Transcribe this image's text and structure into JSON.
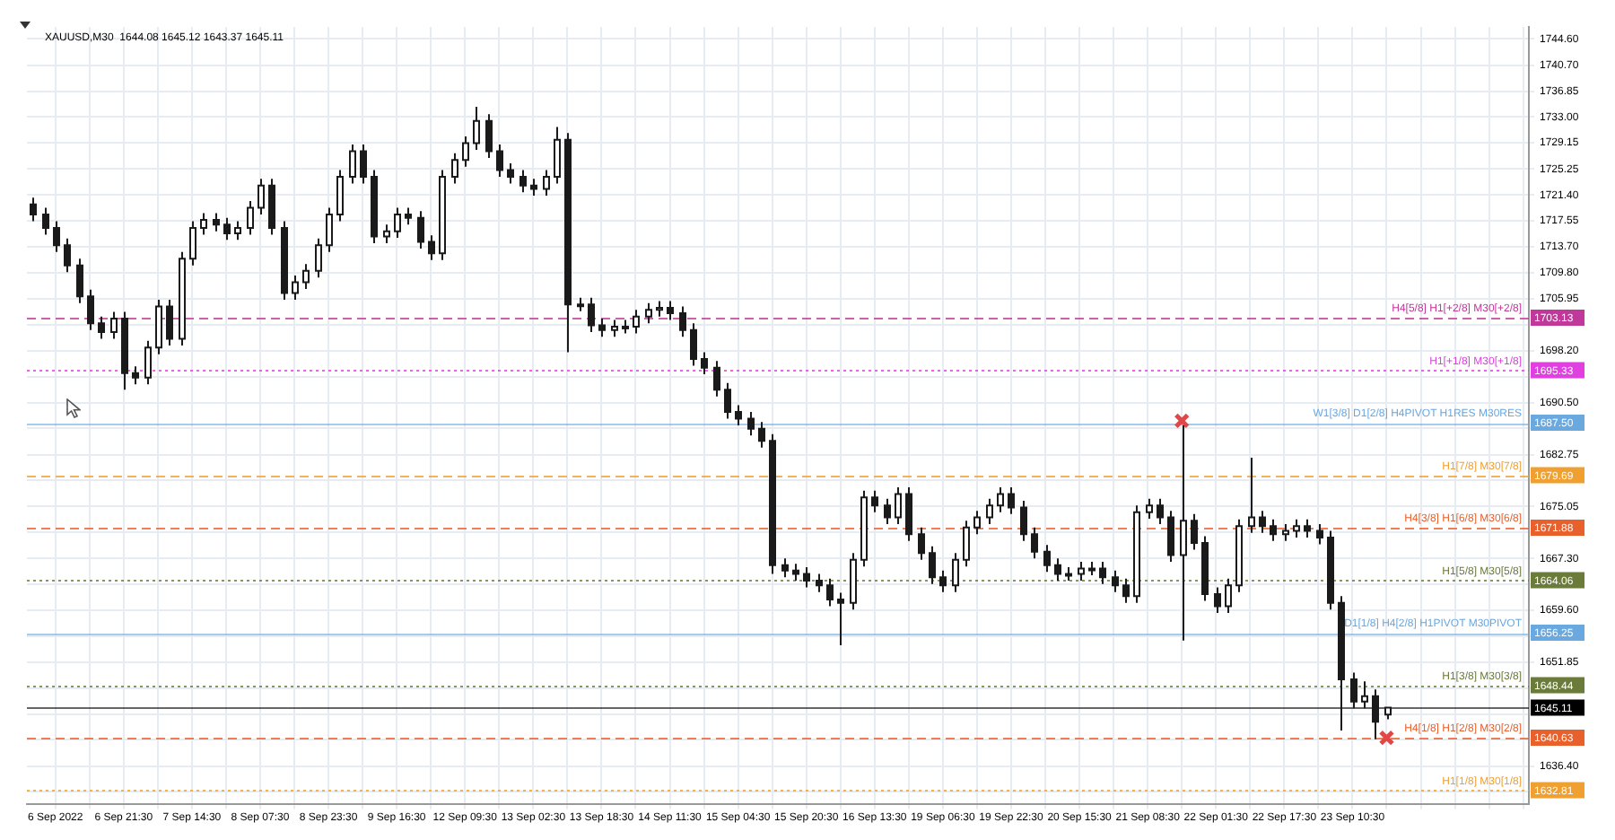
{
  "chart_data": {
    "type": "candlestick",
    "title": "XAUUSD,M30  1644.08 1645.12 1643.37 1645.11",
    "color": "#1a1a1a",
    "categories": [
      null,
      null,
      "6 Sep 2022",
      null,
      null,
      null,
      null,
      null,
      "6 Sep 21:30",
      null,
      null,
      null,
      null,
      null,
      "7 Sep 14:30",
      null,
      null,
      null,
      null,
      null,
      "8 Sep 07:30",
      null,
      null,
      null,
      null,
      null,
      "8 Sep 23:30",
      null,
      null,
      null,
      null,
      null,
      "9 Sep 16:30",
      null,
      null,
      null,
      null,
      null,
      "12 Sep 09:30",
      null,
      null,
      null,
      null,
      null,
      "13 Sep 02:30",
      null,
      null,
      null,
      null,
      null,
      "13 Sep 18:30",
      null,
      null,
      null,
      null,
      null,
      "14 Sep 11:30",
      null,
      null,
      null,
      null,
      null,
      "15 Sep 04:30",
      null,
      null,
      null,
      null,
      null,
      "15 Sep 20:30",
      null,
      null,
      null,
      null,
      null,
      "16 Sep 13:30",
      null,
      null,
      null,
      null,
      null,
      "19 Sep 06:30",
      null,
      null,
      null,
      null,
      null,
      "19 Sep 22:30",
      null,
      null,
      null,
      null,
      null,
      "20 Sep 15:30",
      null,
      null,
      null,
      null,
      null,
      "21 Sep 08:30",
      null,
      null,
      null,
      null,
      null,
      "22 Sep 01:30",
      null,
      null,
      null,
      null,
      null,
      "22 Sep 17:30",
      null,
      null,
      null,
      null,
      null,
      "23 Sep 10:30",
      null,
      null,
      null,
      null,
      null,
      null,
      null,
      null,
      null,
      null,
      null,
      null,
      null,
      null,
      null
    ],
    "ohlc": [
      [
        1720.0,
        1721.0,
        1717.5,
        1718.5
      ],
      [
        1718.5,
        1719.5,
        1715.5,
        1716.5
      ],
      [
        1716.5,
        1717.5,
        1712.9,
        1713.9
      ],
      [
        1713.9,
        1714.9,
        1709.9,
        1710.9
      ],
      [
        1710.9,
        1711.9,
        1705.3,
        1706.3
      ],
      [
        1706.3,
        1707.3,
        1701.3,
        1702.3
      ],
      [
        1702.3,
        1703.3,
        1700.0,
        1701.0
      ],
      [
        1701.0,
        1704.0,
        1700.0,
        1703.0
      ],
      [
        1703.0,
        1704.0,
        1692.4,
        1694.9
      ],
      [
        1694.9,
        1695.9,
        1693.2,
        1694.2
      ],
      [
        1694.2,
        1699.7,
        1693.2,
        1698.7
      ],
      [
        1698.7,
        1705.8,
        1697.7,
        1704.8
      ],
      [
        1704.8,
        1705.8,
        1699.0,
        1700.0
      ],
      [
        1700.0,
        1712.9,
        1699.0,
        1711.9
      ],
      [
        1711.9,
        1717.5,
        1710.9,
        1716.5
      ],
      [
        1716.5,
        1718.7,
        1715.5,
        1717.7
      ],
      [
        1717.7,
        1718.7,
        1716.0,
        1717.0
      ],
      [
        1717.0,
        1718.0,
        1714.7,
        1715.7
      ],
      [
        1715.7,
        1717.5,
        1714.7,
        1716.5
      ],
      [
        1716.5,
        1720.5,
        1715.5,
        1719.5
      ],
      [
        1719.5,
        1723.8,
        1718.5,
        1722.8
      ],
      [
        1722.8,
        1723.8,
        1715.5,
        1716.5
      ],
      [
        1716.5,
        1717.5,
        1705.8,
        1706.8
      ],
      [
        1706.8,
        1709.4,
        1705.8,
        1708.4
      ],
      [
        1708.4,
        1711.1,
        1707.4,
        1710.1
      ],
      [
        1710.1,
        1714.9,
        1709.1,
        1713.9
      ],
      [
        1713.9,
        1719.5,
        1712.9,
        1718.5
      ],
      [
        1718.5,
        1725.1,
        1717.5,
        1724.1
      ],
      [
        1724.1,
        1728.9,
        1723.1,
        1727.9
      ],
      [
        1727.9,
        1728.9,
        1723.1,
        1724.1
      ],
      [
        1724.1,
        1725.1,
        1714.2,
        1715.2
      ],
      [
        1715.2,
        1717.0,
        1714.2,
        1716.0
      ],
      [
        1716.0,
        1719.5,
        1715.0,
        1718.5
      ],
      [
        1718.5,
        1719.5,
        1717.0,
        1718.0
      ],
      [
        1718.0,
        1719.0,
        1713.4,
        1714.4
      ],
      [
        1714.4,
        1715.4,
        1711.7,
        1712.7
      ],
      [
        1712.7,
        1725.1,
        1711.7,
        1724.1
      ],
      [
        1724.1,
        1727.6,
        1723.1,
        1726.6
      ],
      [
        1726.6,
        1730.1,
        1725.6,
        1729.1
      ],
      [
        1729.1,
        1734.5,
        1728.1,
        1732.4
      ],
      [
        1732.4,
        1733.4,
        1726.9,
        1727.9
      ],
      [
        1727.9,
        1728.9,
        1724.1,
        1725.1
      ],
      [
        1725.1,
        1726.1,
        1723.1,
        1724.1
      ],
      [
        1724.1,
        1725.1,
        1721.8,
        1722.8
      ],
      [
        1722.8,
        1723.8,
        1721.3,
        1722.3
      ],
      [
        1722.3,
        1725.1,
        1721.3,
        1724.1
      ],
      [
        1724.1,
        1731.5,
        1723.1,
        1729.6
      ],
      [
        1729.6,
        1730.6,
        1698.0,
        1705.1
      ],
      [
        1705.1,
        1706.1,
        1704.1,
        1705.1
      ],
      [
        1705.1,
        1706.1,
        1701.0,
        1702.0
      ],
      [
        1702.0,
        1703.0,
        1700.3,
        1701.3
      ],
      [
        1701.3,
        1702.8,
        1700.3,
        1701.8
      ],
      [
        1701.8,
        1702.8,
        1700.8,
        1701.8
      ],
      [
        1701.8,
        1704.3,
        1700.8,
        1703.3
      ],
      [
        1703.3,
        1705.3,
        1702.3,
        1704.3
      ],
      [
        1704.3,
        1705.6,
        1703.3,
        1704.6
      ],
      [
        1704.6,
        1705.6,
        1702.8,
        1703.8
      ],
      [
        1703.8,
        1704.8,
        1700.3,
        1701.3
      ],
      [
        1701.3,
        1702.3,
        1696.0,
        1697.0
      ],
      [
        1697.0,
        1698.0,
        1694.7,
        1695.7
      ],
      [
        1695.7,
        1696.7,
        1691.4,
        1692.4
      ],
      [
        1692.4,
        1693.4,
        1688.1,
        1689.1
      ],
      [
        1689.1,
        1690.1,
        1687.1,
        1688.1
      ],
      [
        1688.1,
        1689.1,
        1685.6,
        1686.6
      ],
      [
        1686.6,
        1687.6,
        1683.8,
        1684.8
      ],
      [
        1684.8,
        1685.8,
        1665.0,
        1666.3
      ],
      [
        1666.3,
        1667.3,
        1664.5,
        1665.5
      ],
      [
        1665.5,
        1666.5,
        1664.0,
        1665.0
      ],
      [
        1665.0,
        1666.0,
        1663.0,
        1664.0
      ],
      [
        1664.0,
        1665.0,
        1662.3,
        1663.3
      ],
      [
        1663.3,
        1664.3,
        1660.2,
        1661.2
      ],
      [
        1661.2,
        1662.2,
        1654.4,
        1660.7
      ],
      [
        1660.7,
        1668.1,
        1659.7,
        1667.1
      ],
      [
        1667.1,
        1677.4,
        1666.1,
        1676.4
      ],
      [
        1676.4,
        1677.4,
        1674.2,
        1675.2
      ],
      [
        1675.2,
        1676.2,
        1672.4,
        1673.4
      ],
      [
        1673.4,
        1677.9,
        1672.4,
        1676.9
      ],
      [
        1676.9,
        1677.9,
        1669.9,
        1670.9
      ],
      [
        1670.9,
        1671.9,
        1667.1,
        1668.1
      ],
      [
        1668.1,
        1669.1,
        1663.5,
        1664.5
      ],
      [
        1664.5,
        1665.5,
        1662.3,
        1663.3
      ],
      [
        1663.3,
        1668.1,
        1662.3,
        1667.1
      ],
      [
        1667.1,
        1672.9,
        1666.1,
        1671.9
      ],
      [
        1671.9,
        1674.4,
        1670.9,
        1673.4
      ],
      [
        1673.4,
        1676.2,
        1672.4,
        1675.2
      ],
      [
        1675.2,
        1677.9,
        1674.2,
        1676.9
      ],
      [
        1676.9,
        1677.9,
        1673.9,
        1674.9
      ],
      [
        1674.9,
        1675.9,
        1669.9,
        1670.9
      ],
      [
        1670.9,
        1671.9,
        1667.3,
        1668.3
      ],
      [
        1668.3,
        1669.3,
        1665.3,
        1666.3
      ],
      [
        1666.3,
        1667.3,
        1664.0,
        1665.0
      ],
      [
        1665.0,
        1666.0,
        1664.0,
        1665.0
      ],
      [
        1665.0,
        1666.8,
        1664.0,
        1665.8
      ],
      [
        1665.8,
        1666.8,
        1664.8,
        1665.8
      ],
      [
        1665.8,
        1666.8,
        1663.5,
        1664.5
      ],
      [
        1664.5,
        1665.5,
        1662.3,
        1663.3
      ],
      [
        1663.3,
        1664.3,
        1660.7,
        1661.7
      ],
      [
        1661.7,
        1675.2,
        1660.7,
        1674.2
      ],
      [
        1674.2,
        1676.2,
        1673.2,
        1675.2
      ],
      [
        1675.2,
        1676.2,
        1672.4,
        1673.4
      ],
      [
        1673.4,
        1674.4,
        1666.8,
        1667.8
      ],
      [
        1667.8,
        1687.1,
        1655.1,
        1672.9
      ],
      [
        1672.9,
        1673.9,
        1668.6,
        1669.6
      ],
      [
        1669.6,
        1670.6,
        1661.0,
        1662.0
      ],
      [
        1662.0,
        1663.0,
        1659.2,
        1660.2
      ],
      [
        1660.2,
        1664.3,
        1659.2,
        1663.3
      ],
      [
        1663.3,
        1673.1,
        1662.3,
        1672.1
      ],
      [
        1672.1,
        1682.3,
        1671.1,
        1673.4
      ],
      [
        1673.4,
        1674.4,
        1671.1,
        1672.1
      ],
      [
        1672.1,
        1673.1,
        1669.9,
        1670.9
      ],
      [
        1670.9,
        1672.4,
        1669.9,
        1671.4
      ],
      [
        1671.4,
        1673.1,
        1670.4,
        1672.1
      ],
      [
        1672.1,
        1673.1,
        1670.4,
        1671.4
      ],
      [
        1671.4,
        1672.4,
        1669.4,
        1670.4
      ],
      [
        1670.4,
        1671.4,
        1659.7,
        1660.7
      ],
      [
        1660.7,
        1661.7,
        1641.7,
        1649.3
      ],
      [
        1649.3,
        1650.3,
        1645.0,
        1646.0
      ],
      [
        1646.0,
        1649.0,
        1645.0,
        1646.8
      ],
      [
        1646.8,
        1647.8,
        1640.4,
        1643.0
      ],
      [
        1644.08,
        1645.12,
        1643.37,
        1645.11
      ],
      null,
      null,
      null,
      null,
      null,
      null,
      null,
      null,
      null,
      null,
      null,
      null
    ],
    "series": [
      {
        "type": "scatter",
        "marker": "cross",
        "color": "#e04848",
        "values": [
          null,
          null,
          null,
          null,
          null,
          null,
          null,
          null,
          null,
          null,
          null,
          null,
          null,
          null,
          null,
          null,
          null,
          null,
          null,
          null,
          null,
          null,
          null,
          null,
          null,
          null,
          null,
          null,
          null,
          null,
          null,
          null,
          null,
          null,
          null,
          null,
          null,
          null,
          null,
          null,
          null,
          null,
          null,
          null,
          null,
          null,
          null,
          null,
          null,
          null,
          null,
          null,
          null,
          null,
          null,
          null,
          null,
          null,
          null,
          null,
          null,
          null,
          null,
          null,
          null,
          null,
          null,
          null,
          null,
          null,
          null,
          null,
          null,
          null,
          null,
          null,
          null,
          null,
          null,
          null,
          null,
          null,
          null,
          null,
          null,
          null,
          null,
          null,
          null,
          null,
          null,
          null,
          null,
          null,
          null,
          null,
          null,
          null,
          null,
          null,
          null,
          1687.8,
          null,
          null,
          null,
          null,
          null,
          null,
          null,
          null,
          null,
          null,
          null,
          null,
          null,
          null,
          null,
          null,
          null,
          1640.6,
          null,
          null,
          null,
          null,
          null,
          null,
          null,
          null,
          null,
          null,
          null,
          null
        ]
      }
    ],
    "ylim": [
      1630.8,
      1746.4
    ],
    "yticks": [
      {
        "value": 1744.6,
        "label": "1744.60"
      },
      {
        "value": 1740.7,
        "label": "1740.70"
      },
      {
        "value": 1736.85,
        "label": "1736.85"
      },
      {
        "value": 1733.0,
        "label": "1733.00"
      },
      {
        "value": 1729.15,
        "label": "1729.15"
      },
      {
        "value": 1725.25,
        "label": "1725.25"
      },
      {
        "value": 1721.4,
        "label": "1721.40"
      },
      {
        "value": 1717.55,
        "label": "1717.55"
      },
      {
        "value": 1713.7,
        "label": "1713.70"
      },
      {
        "value": 1709.8,
        "label": "1709.80"
      },
      {
        "value": 1705.95,
        "label": "1705.95"
      },
      {
        "value": 1702.1,
        "label": null
      },
      {
        "value": 1698.2,
        "label": "1698.20"
      },
      {
        "value": 1694.35,
        "label": null
      },
      {
        "value": 1690.5,
        "label": "1690.50"
      },
      {
        "value": 1686.65,
        "label": null
      },
      {
        "value": 1682.75,
        "label": "1682.75"
      },
      {
        "value": 1678.9,
        "label": null
      },
      {
        "value": 1675.05,
        "label": "1675.05"
      },
      {
        "value": 1671.2,
        "label": null
      },
      {
        "value": 1667.3,
        "label": "1667.30"
      },
      {
        "value": 1663.45,
        "label": null
      },
      {
        "value": 1659.6,
        "label": "1659.60"
      },
      {
        "value": 1655.75,
        "label": null
      },
      {
        "value": 1651.85,
        "label": "1651.85"
      },
      {
        "value": 1648.0,
        "label": null
      },
      {
        "value": 1644.15,
        "label": null
      },
      {
        "value": 1640.3,
        "label": null
      },
      {
        "value": 1636.4,
        "label": "1636.40"
      },
      {
        "value": 1632.55,
        "label": null
      }
    ],
    "ref_lines": [
      {
        "axis": "y",
        "value": 1703.13,
        "label": "1703.13",
        "color": "#c0399a",
        "line_style": "dashed"
      },
      {
        "axis": "y",
        "value": 1695.33,
        "label": "1695.33",
        "color": "#e040e0",
        "line_style": "dotted"
      },
      {
        "axis": "y",
        "value": 1687.5,
        "label": "1687.50",
        "color": "#6aa8e0",
        "line_style": "solid"
      },
      {
        "axis": "y",
        "value": 1679.69,
        "label": "1679.69",
        "color": "#f0a030",
        "line_style": "dashed"
      },
      {
        "axis": "y",
        "value": 1671.88,
        "label": "1671.88",
        "color": "#e8602c",
        "line_style": "dashed"
      },
      {
        "axis": "y",
        "value": 1664.06,
        "label": "1664.06",
        "color": "#6b7b3a",
        "line_style": "dotted"
      },
      {
        "axis": "y",
        "value": 1656.25,
        "label": "1656.25",
        "color": "#6aa8e0",
        "line_style": "solid"
      },
      {
        "axis": "y",
        "value": 1648.44,
        "label": "1648.44",
        "color": "#6b7b3a",
        "line_style": "dotted"
      },
      {
        "axis": "y",
        "value": 1645.11,
        "label": "1645.11",
        "color": "#000000",
        "line_style": "solid"
      },
      {
        "axis": "y",
        "value": 1640.63,
        "label": "1640.63",
        "color": "#e8602c",
        "line_style": "dashed"
      },
      {
        "axis": "y",
        "value": 1632.81,
        "label": "1632.81",
        "color": "#f0a030",
        "line_style": "dotted"
      }
    ],
    "annotations": [
      {
        "text": "H4[5/8] H1[+2/8] M30[+2/8]",
        "y": 1703.13
      },
      {
        "text": "H1[+1/8] M30[+1/8]",
        "y": 1695.33
      },
      {
        "text": "W1[3/8] D1[2/8] H4PIVOT H1RES M30RES",
        "y": 1687.5
      },
      {
        "text": "H1[7/8] M30[7/8]",
        "y": 1679.69
      },
      {
        "text": "H4[3/8] H1[6/8] M30[6/8]",
        "y": 1671.88
      },
      {
        "text": "H1[5/8] M30[5/8]",
        "y": 1664.06
      },
      {
        "text": "D1[1/8] H4[2/8] H1PIVOT M30PIVOT",
        "y": 1656.25
      },
      {
        "text": "H1[3/8] M30[3/8]",
        "y": 1648.44
      },
      {
        "text": "H4[1/8] H1[2/8] M30[2/8]",
        "y": 1640.63
      },
      {
        "text": "H1[1/8] M30[1/8]",
        "y": 1632.81
      }
    ],
    "grid": true,
    "legend": false
  }
}
